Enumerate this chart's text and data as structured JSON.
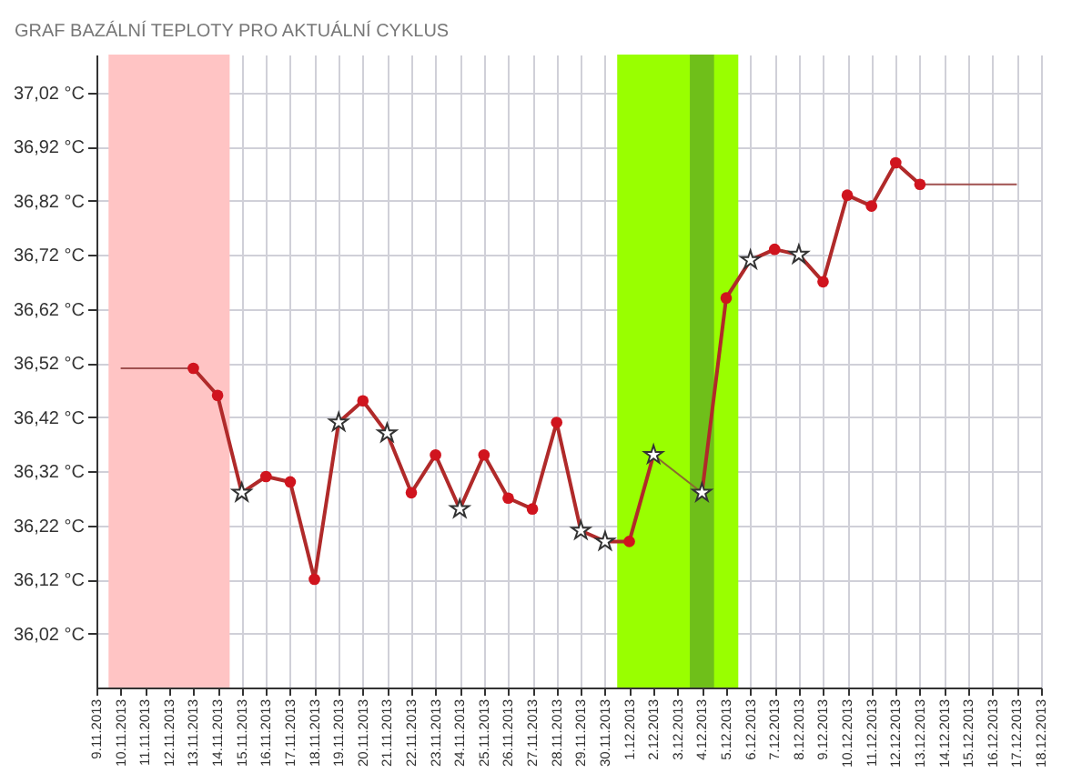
{
  "chart_data": {
    "type": "line",
    "title": "GRAF BAZÁLNÍ TEPLOTY PRO AKTUÁLNÍ CYKLUS",
    "xlim": [
      "2013-11-09",
      "2013-12-18"
    ],
    "xticks": [
      {
        "value": "2013-11-09",
        "label": "9.11.2013"
      },
      {
        "value": "2013-11-10",
        "label": "10.11.2013"
      },
      {
        "value": "2013-11-11",
        "label": "11.11.2013"
      },
      {
        "value": "2013-11-12",
        "label": "12.11.2013"
      },
      {
        "value": "2013-11-13",
        "label": "13.11.2013"
      },
      {
        "value": "2013-11-14",
        "label": "14.11.2013"
      },
      {
        "value": "2013-11-15",
        "label": "15.11.2013"
      },
      {
        "value": "2013-11-16",
        "label": "16.11.2013"
      },
      {
        "value": "2013-11-17",
        "label": "17.11.2013"
      },
      {
        "value": "2013-11-18",
        "label": "18.11.2013"
      },
      {
        "value": "2013-11-19",
        "label": "19.11.2013"
      },
      {
        "value": "2013-11-20",
        "label": "20.11.2013"
      },
      {
        "value": "2013-11-21",
        "label": "21.11.2013"
      },
      {
        "value": "2013-11-22",
        "label": "22.11.2013"
      },
      {
        "value": "2013-11-23",
        "label": "23.11.2013"
      },
      {
        "value": "2013-11-24",
        "label": "24.11.2013"
      },
      {
        "value": "2013-11-25",
        "label": "25.11.2013"
      },
      {
        "value": "2013-11-26",
        "label": "26.11.2013"
      },
      {
        "value": "2013-11-27",
        "label": "27.11.2013"
      },
      {
        "value": "2013-11-28",
        "label": "28.11.2013"
      },
      {
        "value": "2013-11-29",
        "label": "29.11.2013"
      },
      {
        "value": "2013-11-30",
        "label": "30.11.2013"
      },
      {
        "value": "2013-12-01",
        "label": "1.12.2013"
      },
      {
        "value": "2013-12-02",
        "label": "2.12.2013"
      },
      {
        "value": "2013-12-03",
        "label": "3.12.2013"
      },
      {
        "value": "2013-12-04",
        "label": "4.12.2013"
      },
      {
        "value": "2013-12-05",
        "label": "5.12.2013"
      },
      {
        "value": "2013-12-06",
        "label": "6.12.2013"
      },
      {
        "value": "2013-12-07",
        "label": "7.12.2013"
      },
      {
        "value": "2013-12-08",
        "label": "8.12.2013"
      },
      {
        "value": "2013-12-09",
        "label": "9.12.2013"
      },
      {
        "value": "2013-12-10",
        "label": "10.12.2013"
      },
      {
        "value": "2013-12-11",
        "label": "11.12.2013"
      },
      {
        "value": "2013-12-12",
        "label": "12.12.2013"
      },
      {
        "value": "2013-12-13",
        "label": "13.12.2013"
      },
      {
        "value": "2013-12-14",
        "label": "14.12.2013"
      },
      {
        "value": "2013-12-15",
        "label": "15.12.2013"
      },
      {
        "value": "2013-12-16",
        "label": "16.12.2013"
      },
      {
        "value": "2013-12-17",
        "label": "17.12.2013"
      },
      {
        "value": "2013-12-18",
        "label": "18.12.2013"
      }
    ],
    "ylim": [
      35.92,
      37.09
    ],
    "yticks": [
      {
        "value": 36.02,
        "label": "36,02 °C"
      },
      {
        "value": 36.12,
        "label": "36,12 °C"
      },
      {
        "value": 36.22,
        "label": "36,22 °C"
      },
      {
        "value": 36.32,
        "label": "36,32 °C"
      },
      {
        "value": 36.42,
        "label": "36,42 °C"
      },
      {
        "value": 36.52,
        "label": "36,52 °C"
      },
      {
        "value": 36.62,
        "label": "36,62 °C"
      },
      {
        "value": 36.72,
        "label": "36,72 °C"
      },
      {
        "value": 36.82,
        "label": "36,82 °C"
      },
      {
        "value": 36.92,
        "label": "36,92 °C"
      },
      {
        "value": 37.02,
        "label": "37,02 °C"
      }
    ],
    "grid": true,
    "bands": [
      {
        "axis": "x",
        "from": "2013-11-09T12:00",
        "to": "2013-11-14T12:00",
        "color": "#ffc4c4"
      },
      {
        "axis": "x",
        "from": "2013-11-30T12:00",
        "to": "2013-12-05T12:00",
        "color": "#99ff00"
      },
      {
        "axis": "x",
        "from": "2013-12-03T12:00",
        "to": "2013-12-04T12:00",
        "color": "#6fbf1a"
      }
    ],
    "series": [
      {
        "type": "line",
        "color": "#a0504f",
        "marker": "none",
        "x": [
          "2013-11-10",
          "2013-11-11",
          "2013-11-12",
          "2013-11-13"
        ],
        "values": [
          36.51,
          36.51,
          36.51,
          36.51
        ]
      },
      {
        "type": "line",
        "color": "#8a6a30",
        "marker": "none",
        "x": [
          "2013-12-02",
          "2013-12-04"
        ],
        "values": [
          36.35,
          36.28
        ]
      },
      {
        "type": "line",
        "color": "#a0504f",
        "marker": "none",
        "x": [
          "2013-12-13",
          "2013-12-14",
          "2013-12-15",
          "2013-12-16",
          "2013-12-17"
        ],
        "values": [
          36.85,
          36.85,
          36.85,
          36.85,
          36.85
        ]
      },
      {
        "type": "line",
        "color": "#b02a2a",
        "marker": "none",
        "x": [
          "2013-11-13",
          "2013-11-14",
          "2013-11-15",
          "2013-11-16",
          "2013-11-17",
          "2013-11-18",
          "2013-11-19",
          "2013-11-20",
          "2013-11-21",
          "2013-11-22",
          "2013-11-23",
          "2013-11-24",
          "2013-11-25",
          "2013-11-26",
          "2013-11-27",
          "2013-11-28",
          "2013-11-29",
          "2013-11-30",
          "2013-12-01",
          "2013-12-02",
          "2013-12-03",
          "2013-12-04",
          "2013-12-05",
          "2013-12-06",
          "2013-12-07",
          "2013-12-08",
          "2013-12-09",
          "2013-12-10",
          "2013-12-11",
          "2013-12-12",
          "2013-12-13"
        ],
        "values": [
          36.51,
          36.46,
          36.28,
          36.31,
          36.3,
          36.12,
          36.41,
          36.45,
          36.39,
          36.28,
          36.35,
          36.25,
          36.35,
          36.27,
          36.25,
          36.41,
          36.21,
          36.19,
          36.19,
          36.35,
          null,
          36.28,
          36.64,
          36.71,
          36.73,
          36.72,
          36.67,
          36.83,
          36.81,
          36.89,
          36.85
        ]
      },
      {
        "type": "scatter",
        "color": "#d0141e",
        "marker": "circle",
        "x": [
          "2013-11-13",
          "2013-11-14",
          "2013-11-16",
          "2013-11-17",
          "2013-11-18",
          "2013-11-20",
          "2013-11-22",
          "2013-11-23",
          "2013-11-25",
          "2013-11-26",
          "2013-11-27",
          "2013-11-28",
          "2013-12-01",
          "2013-12-05",
          "2013-12-07",
          "2013-12-09",
          "2013-12-10",
          "2013-12-11",
          "2013-12-12",
          "2013-12-13"
        ],
        "values": [
          36.51,
          36.46,
          36.31,
          36.3,
          36.12,
          36.45,
          36.28,
          36.35,
          36.35,
          36.27,
          36.25,
          36.41,
          36.19,
          36.64,
          36.73,
          36.67,
          36.83,
          36.81,
          36.89,
          36.85
        ]
      },
      {
        "type": "scatter",
        "color": "#ffffff",
        "marker": "star",
        "x": [
          "2013-11-15",
          "2013-11-19",
          "2013-11-21",
          "2013-11-24",
          "2013-11-29",
          "2013-11-30",
          "2013-12-02",
          "2013-12-04",
          "2013-12-06",
          "2013-12-08"
        ],
        "values": [
          36.28,
          36.41,
          36.39,
          36.25,
          36.21,
          36.19,
          36.35,
          36.28,
          36.71,
          36.72
        ]
      }
    ]
  }
}
